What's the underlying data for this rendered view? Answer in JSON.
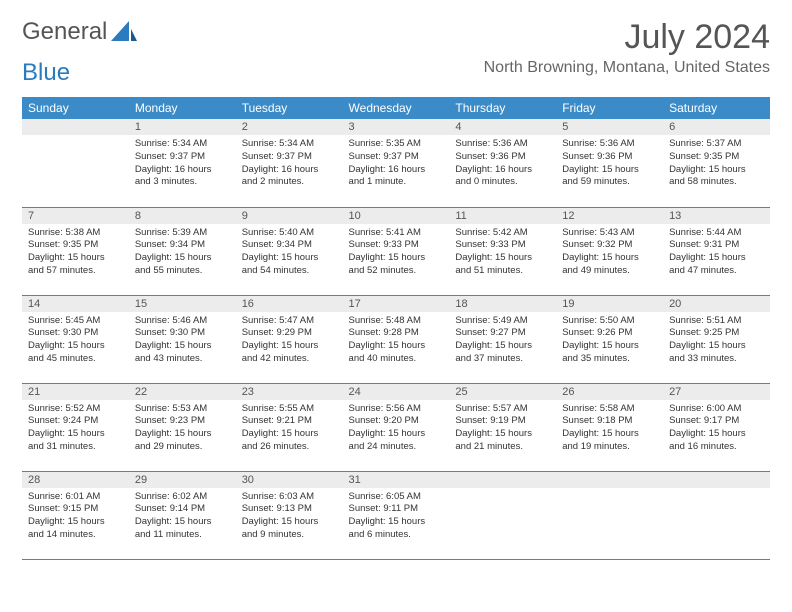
{
  "brand": {
    "part1": "General",
    "part2": "Blue"
  },
  "title": "July 2024",
  "subtitle": "North Browning, Montana, United States",
  "colors": {
    "header_bg": "#3b8bc8",
    "header_text": "#ffffff",
    "daynum_bg": "#ececec",
    "row_border": "#3b8bc8",
    "title_color": "#555555",
    "brand_blue": "#2b7bbf"
  },
  "weekdays": [
    "Sunday",
    "Monday",
    "Tuesday",
    "Wednesday",
    "Thursday",
    "Friday",
    "Saturday"
  ],
  "weeks": [
    [
      null,
      {
        "n": "1",
        "sr": "Sunrise: 5:34 AM",
        "ss": "Sunset: 9:37 PM",
        "d1": "Daylight: 16 hours",
        "d2": "and 3 minutes."
      },
      {
        "n": "2",
        "sr": "Sunrise: 5:34 AM",
        "ss": "Sunset: 9:37 PM",
        "d1": "Daylight: 16 hours",
        "d2": "and 2 minutes."
      },
      {
        "n": "3",
        "sr": "Sunrise: 5:35 AM",
        "ss": "Sunset: 9:37 PM",
        "d1": "Daylight: 16 hours",
        "d2": "and 1 minute."
      },
      {
        "n": "4",
        "sr": "Sunrise: 5:36 AM",
        "ss": "Sunset: 9:36 PM",
        "d1": "Daylight: 16 hours",
        "d2": "and 0 minutes."
      },
      {
        "n": "5",
        "sr": "Sunrise: 5:36 AM",
        "ss": "Sunset: 9:36 PM",
        "d1": "Daylight: 15 hours",
        "d2": "and 59 minutes."
      },
      {
        "n": "6",
        "sr": "Sunrise: 5:37 AM",
        "ss": "Sunset: 9:35 PM",
        "d1": "Daylight: 15 hours",
        "d2": "and 58 minutes."
      }
    ],
    [
      {
        "n": "7",
        "sr": "Sunrise: 5:38 AM",
        "ss": "Sunset: 9:35 PM",
        "d1": "Daylight: 15 hours",
        "d2": "and 57 minutes."
      },
      {
        "n": "8",
        "sr": "Sunrise: 5:39 AM",
        "ss": "Sunset: 9:34 PM",
        "d1": "Daylight: 15 hours",
        "d2": "and 55 minutes."
      },
      {
        "n": "9",
        "sr": "Sunrise: 5:40 AM",
        "ss": "Sunset: 9:34 PM",
        "d1": "Daylight: 15 hours",
        "d2": "and 54 minutes."
      },
      {
        "n": "10",
        "sr": "Sunrise: 5:41 AM",
        "ss": "Sunset: 9:33 PM",
        "d1": "Daylight: 15 hours",
        "d2": "and 52 minutes."
      },
      {
        "n": "11",
        "sr": "Sunrise: 5:42 AM",
        "ss": "Sunset: 9:33 PM",
        "d1": "Daylight: 15 hours",
        "d2": "and 51 minutes."
      },
      {
        "n": "12",
        "sr": "Sunrise: 5:43 AM",
        "ss": "Sunset: 9:32 PM",
        "d1": "Daylight: 15 hours",
        "d2": "and 49 minutes."
      },
      {
        "n": "13",
        "sr": "Sunrise: 5:44 AM",
        "ss": "Sunset: 9:31 PM",
        "d1": "Daylight: 15 hours",
        "d2": "and 47 minutes."
      }
    ],
    [
      {
        "n": "14",
        "sr": "Sunrise: 5:45 AM",
        "ss": "Sunset: 9:30 PM",
        "d1": "Daylight: 15 hours",
        "d2": "and 45 minutes."
      },
      {
        "n": "15",
        "sr": "Sunrise: 5:46 AM",
        "ss": "Sunset: 9:30 PM",
        "d1": "Daylight: 15 hours",
        "d2": "and 43 minutes."
      },
      {
        "n": "16",
        "sr": "Sunrise: 5:47 AM",
        "ss": "Sunset: 9:29 PM",
        "d1": "Daylight: 15 hours",
        "d2": "and 42 minutes."
      },
      {
        "n": "17",
        "sr": "Sunrise: 5:48 AM",
        "ss": "Sunset: 9:28 PM",
        "d1": "Daylight: 15 hours",
        "d2": "and 40 minutes."
      },
      {
        "n": "18",
        "sr": "Sunrise: 5:49 AM",
        "ss": "Sunset: 9:27 PM",
        "d1": "Daylight: 15 hours",
        "d2": "and 37 minutes."
      },
      {
        "n": "19",
        "sr": "Sunrise: 5:50 AM",
        "ss": "Sunset: 9:26 PM",
        "d1": "Daylight: 15 hours",
        "d2": "and 35 minutes."
      },
      {
        "n": "20",
        "sr": "Sunrise: 5:51 AM",
        "ss": "Sunset: 9:25 PM",
        "d1": "Daylight: 15 hours",
        "d2": "and 33 minutes."
      }
    ],
    [
      {
        "n": "21",
        "sr": "Sunrise: 5:52 AM",
        "ss": "Sunset: 9:24 PM",
        "d1": "Daylight: 15 hours",
        "d2": "and 31 minutes."
      },
      {
        "n": "22",
        "sr": "Sunrise: 5:53 AM",
        "ss": "Sunset: 9:23 PM",
        "d1": "Daylight: 15 hours",
        "d2": "and 29 minutes."
      },
      {
        "n": "23",
        "sr": "Sunrise: 5:55 AM",
        "ss": "Sunset: 9:21 PM",
        "d1": "Daylight: 15 hours",
        "d2": "and 26 minutes."
      },
      {
        "n": "24",
        "sr": "Sunrise: 5:56 AM",
        "ss": "Sunset: 9:20 PM",
        "d1": "Daylight: 15 hours",
        "d2": "and 24 minutes."
      },
      {
        "n": "25",
        "sr": "Sunrise: 5:57 AM",
        "ss": "Sunset: 9:19 PM",
        "d1": "Daylight: 15 hours",
        "d2": "and 21 minutes."
      },
      {
        "n": "26",
        "sr": "Sunrise: 5:58 AM",
        "ss": "Sunset: 9:18 PM",
        "d1": "Daylight: 15 hours",
        "d2": "and 19 minutes."
      },
      {
        "n": "27",
        "sr": "Sunrise: 6:00 AM",
        "ss": "Sunset: 9:17 PM",
        "d1": "Daylight: 15 hours",
        "d2": "and 16 minutes."
      }
    ],
    [
      {
        "n": "28",
        "sr": "Sunrise: 6:01 AM",
        "ss": "Sunset: 9:15 PM",
        "d1": "Daylight: 15 hours",
        "d2": "and 14 minutes."
      },
      {
        "n": "29",
        "sr": "Sunrise: 6:02 AM",
        "ss": "Sunset: 9:14 PM",
        "d1": "Daylight: 15 hours",
        "d2": "and 11 minutes."
      },
      {
        "n": "30",
        "sr": "Sunrise: 6:03 AM",
        "ss": "Sunset: 9:13 PM",
        "d1": "Daylight: 15 hours",
        "d2": "and 9 minutes."
      },
      {
        "n": "31",
        "sr": "Sunrise: 6:05 AM",
        "ss": "Sunset: 9:11 PM",
        "d1": "Daylight: 15 hours",
        "d2": "and 6 minutes."
      },
      null,
      null,
      null
    ]
  ]
}
